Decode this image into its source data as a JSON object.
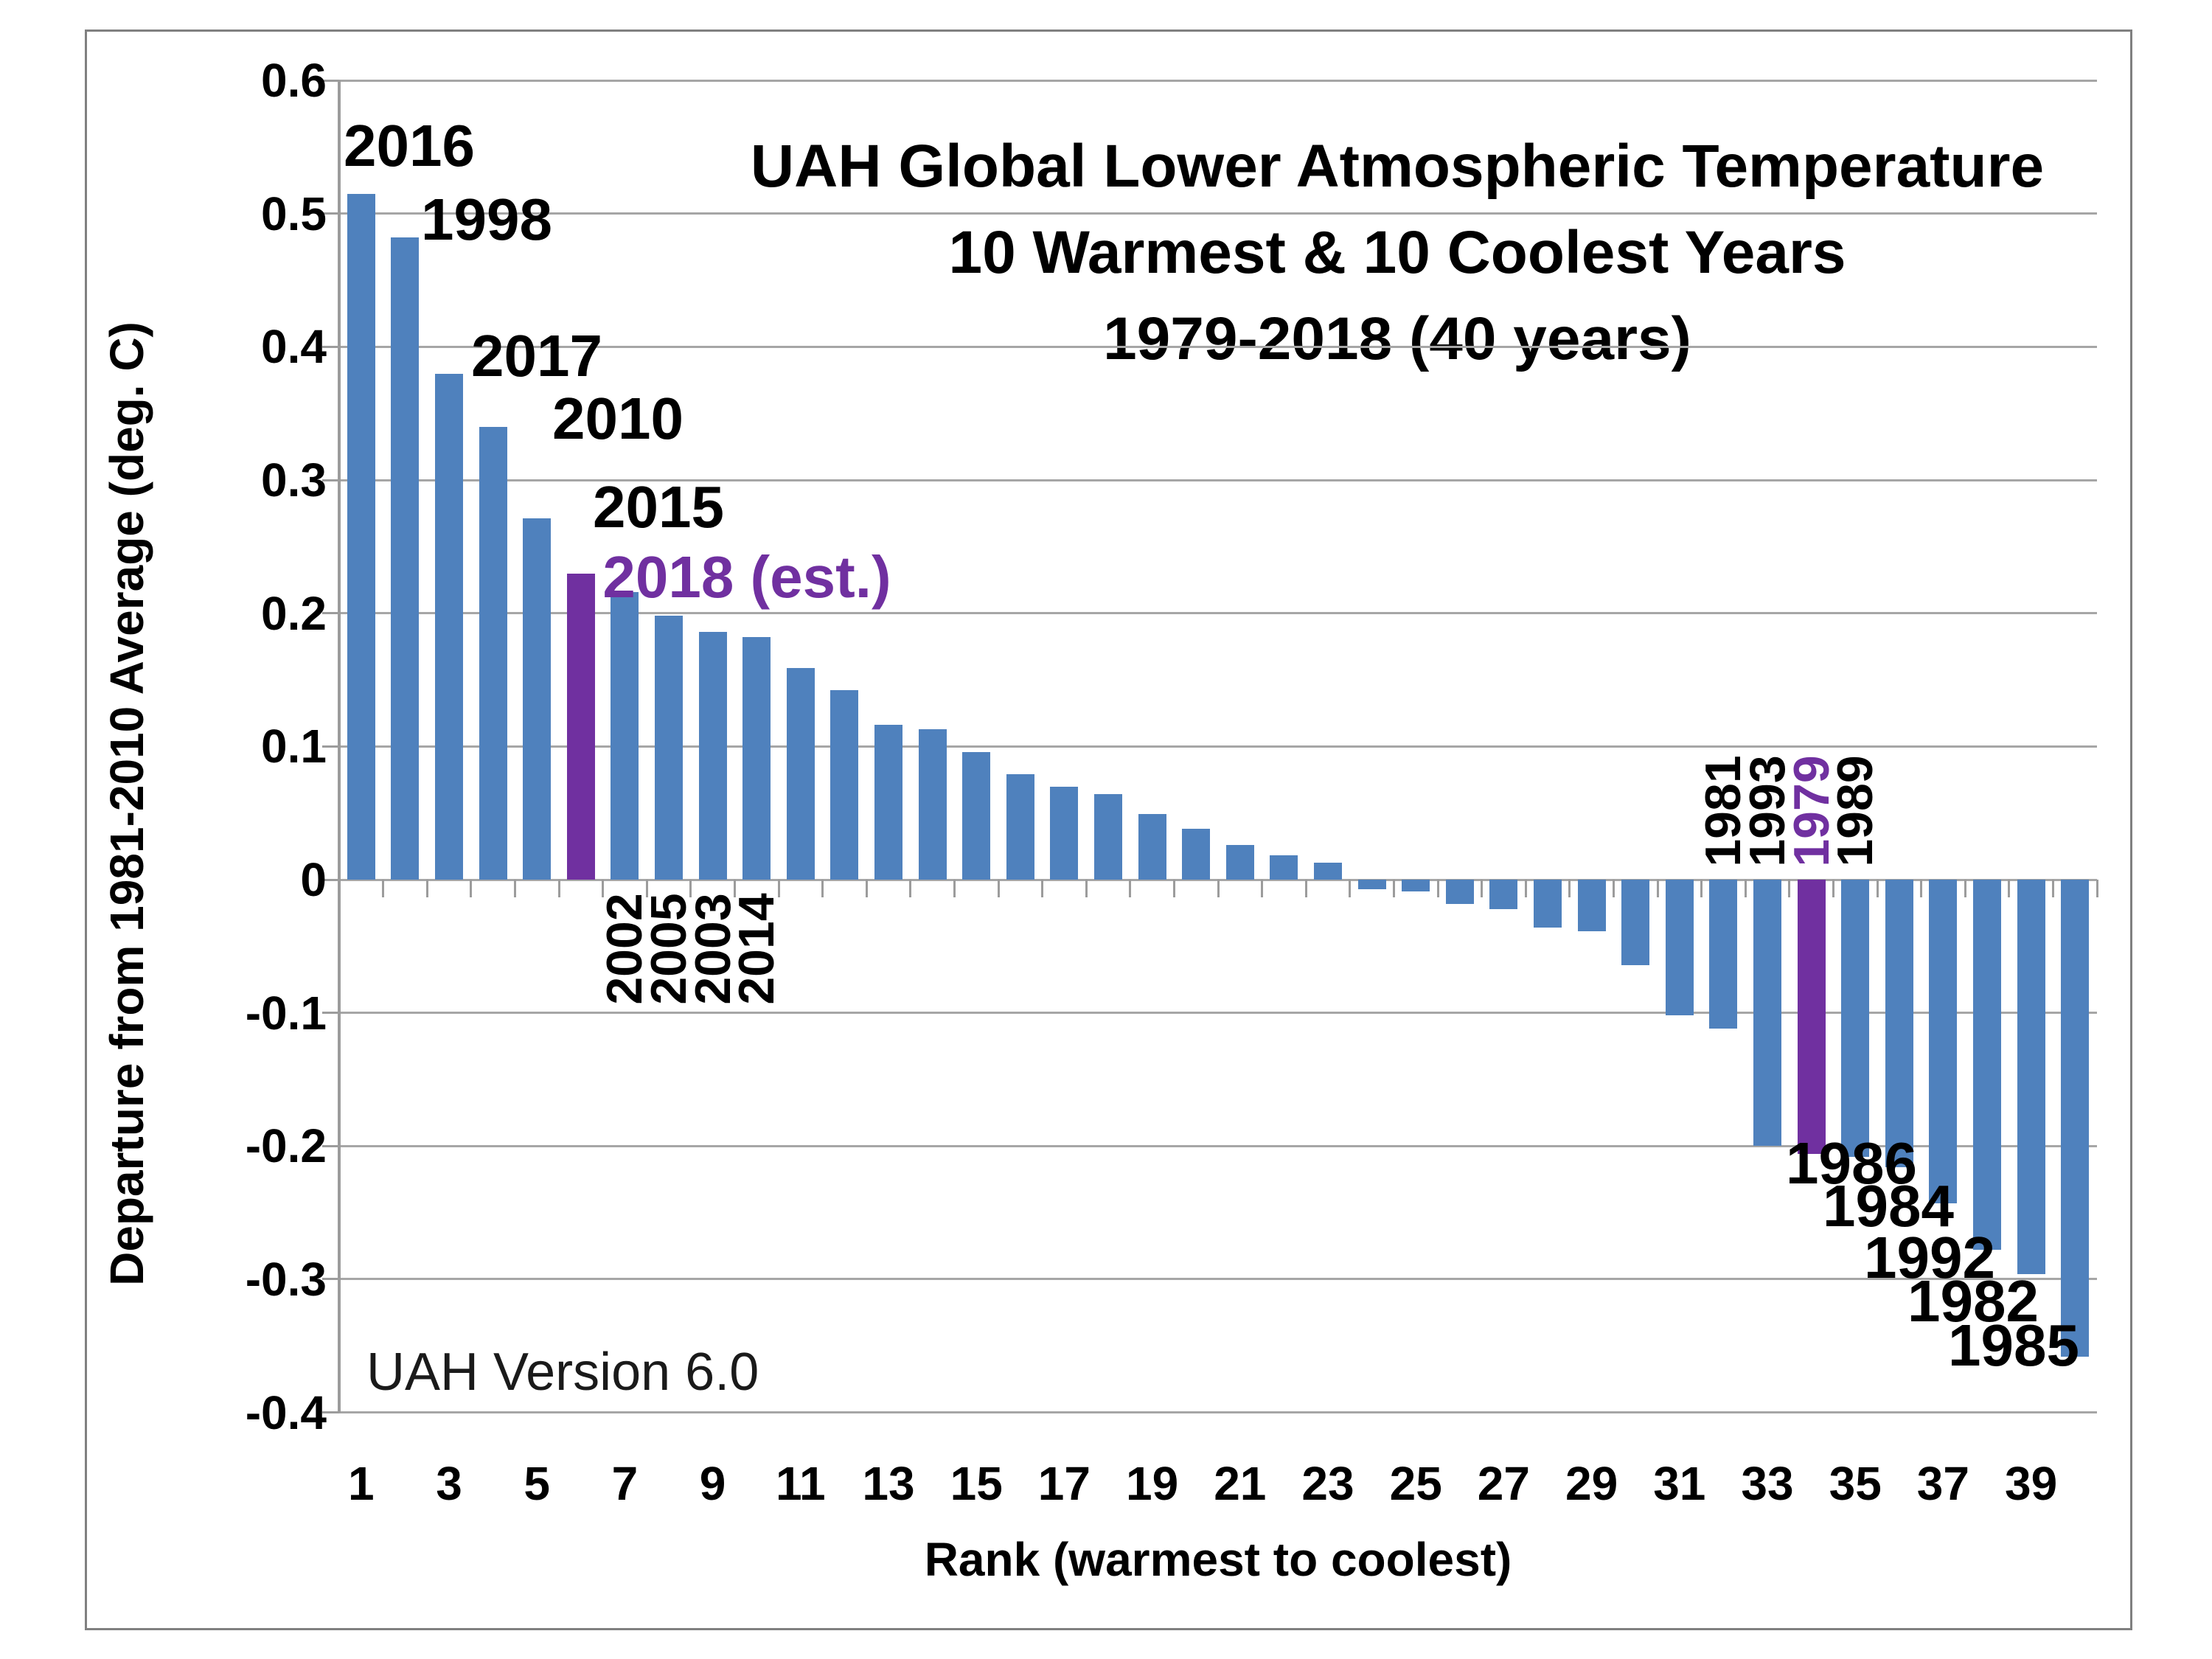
{
  "chart_data": {
    "type": "bar",
    "title_lines": [
      "UAH Global Lower Atmospheric Temperature",
      "10 Warmest & 10 Coolest Years",
      "1979-2018 (40 years)"
    ],
    "xlabel": "Rank (warmest to coolest)",
    "ylabel": "Departure from 1981-2010 Average (deg. C)",
    "watermark": "UAH Version 6.0",
    "ylim": [
      -0.4,
      0.6
    ],
    "grid": true,
    "legend": "none",
    "ytick_labels": [
      "0.6",
      "0.5",
      "0.4",
      "0.3",
      "0.2",
      "0.1",
      "0",
      "-0.1",
      "-0.2",
      "-0.3",
      "-0.4"
    ],
    "xtick_labels": [
      "1",
      "3",
      "5",
      "7",
      "9",
      "11",
      "13",
      "15",
      "17",
      "19",
      "21",
      "23",
      "25",
      "27",
      "29",
      "31",
      "33",
      "35",
      "37",
      "39"
    ],
    "categories": [
      1,
      2,
      3,
      4,
      5,
      6,
      7,
      8,
      9,
      10,
      11,
      12,
      13,
      14,
      15,
      16,
      17,
      18,
      19,
      20,
      21,
      22,
      23,
      24,
      25,
      26,
      27,
      28,
      29,
      30,
      31,
      32,
      33,
      34,
      35,
      36,
      37,
      38,
      39,
      40
    ],
    "values": [
      0.515,
      0.482,
      0.38,
      0.34,
      0.271,
      0.23,
      0.216,
      0.198,
      0.186,
      0.182,
      0.159,
      0.142,
      0.116,
      0.113,
      0.096,
      0.079,
      0.07,
      0.064,
      0.049,
      0.038,
      0.026,
      0.018,
      0.013,
      -0.007,
      -0.009,
      -0.018,
      -0.022,
      -0.036,
      -0.039,
      -0.064,
      -0.102,
      -0.112,
      -0.2,
      -0.206,
      -0.208,
      -0.216,
      -0.243,
      -0.278,
      -0.296,
      -0.358
    ],
    "bar_color": "#4F81BD",
    "highlight_color": "#7030A0",
    "highlight_ranks": [
      6,
      34
    ],
    "annotations": {
      "warm_horizontal": [
        {
          "text": "2016",
          "rank": 1,
          "highlight": false
        },
        {
          "text": "1998",
          "rank": 2,
          "highlight": false
        },
        {
          "text": "2017",
          "rank": 3,
          "highlight": false
        },
        {
          "text": "2010",
          "rank": 4,
          "highlight": false
        },
        {
          "text": "2015",
          "rank": 5,
          "highlight": false
        },
        {
          "text": "2018 (est.)",
          "rank": 6,
          "highlight": true
        }
      ],
      "warm_vertical": [
        {
          "text": "2002",
          "rank": 7,
          "highlight": false
        },
        {
          "text": "2005",
          "rank": 8,
          "highlight": false
        },
        {
          "text": "2003",
          "rank": 9,
          "highlight": false
        },
        {
          "text": "2014",
          "rank": 10,
          "highlight": false
        }
      ],
      "cool_vertical": [
        {
          "text": "1981",
          "rank": 32,
          "highlight": false
        },
        {
          "text": "1993",
          "rank": 33,
          "highlight": false
        },
        {
          "text": "1979",
          "rank": 34,
          "highlight": true
        },
        {
          "text": "1989",
          "rank": 35,
          "highlight": false
        }
      ],
      "cool_horizontal": [
        {
          "text": "1986",
          "rank": 36,
          "highlight": false
        },
        {
          "text": "1984",
          "rank": 37,
          "highlight": false
        },
        {
          "text": "1992",
          "rank": 38,
          "highlight": false
        },
        {
          "text": "1982",
          "rank": 39,
          "highlight": false
        },
        {
          "text": "1985",
          "rank": 40,
          "highlight": false
        }
      ]
    },
    "colors": {
      "grid": "#A6A6A6",
      "axis": "#9C9C9C",
      "frame": "#808080",
      "text": "#000000",
      "background": "#FFFFFF"
    }
  }
}
